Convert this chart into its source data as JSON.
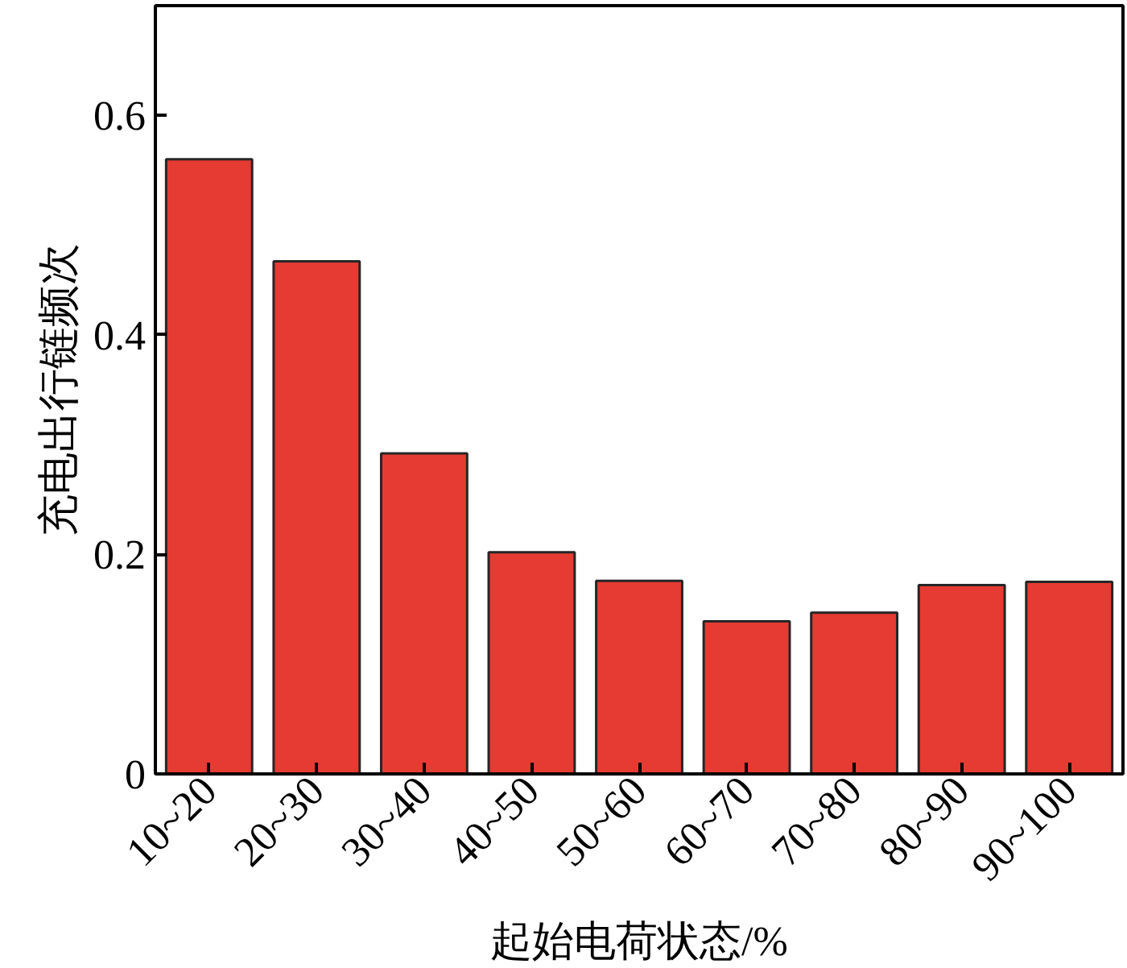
{
  "chart_data": {
    "type": "bar",
    "xlabel": "起始电荷状态/%",
    "ylabel": "充电出行链频次",
    "categories": [
      "10~20",
      "20~30",
      "30~40",
      "40~50",
      "50~60",
      "60~70",
      "70~80",
      "80~90",
      "90~100"
    ],
    "values": [
      0.56,
      0.467,
      0.292,
      0.202,
      0.176,
      0.139,
      0.147,
      0.172,
      0.175
    ],
    "color": "#e63b32",
    "ylim": [
      0,
      0.7
    ],
    "yticks": [
      0,
      0.2,
      0.4,
      0.6
    ]
  }
}
